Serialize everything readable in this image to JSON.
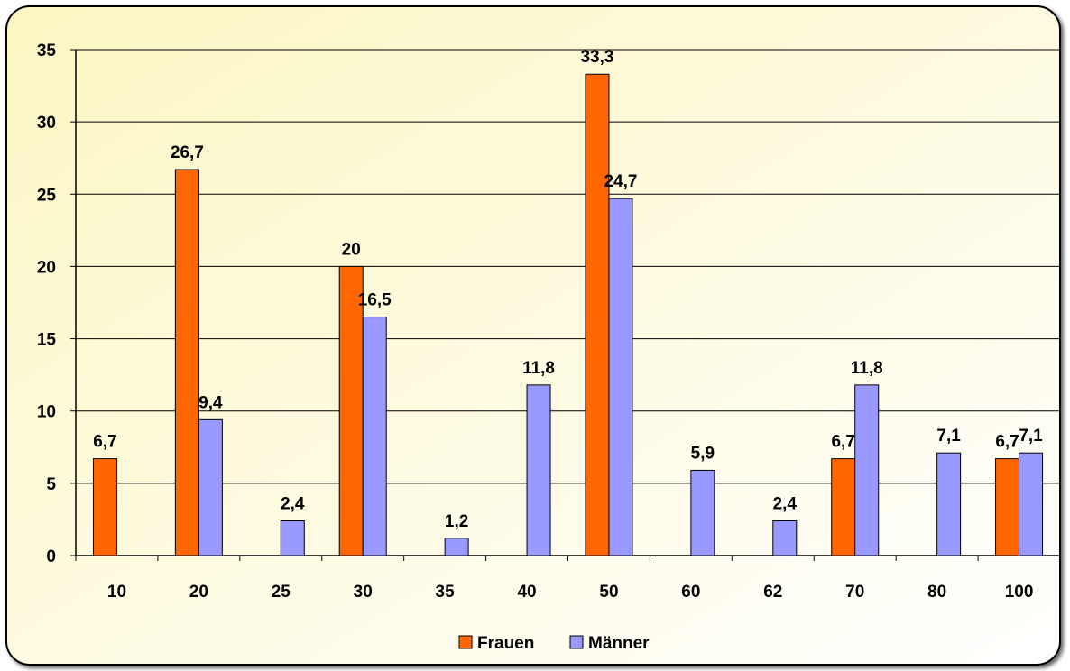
{
  "chart_data": {
    "type": "bar",
    "categories": [
      "10",
      "20",
      "25",
      "30",
      "35",
      "40",
      "50",
      "60",
      "62",
      "70",
      "80",
      "100"
    ],
    "series": [
      {
        "name": "Frauen",
        "color": "#ff6600",
        "values": [
          6.7,
          26.7,
          null,
          20,
          null,
          null,
          33.3,
          null,
          null,
          6.7,
          null,
          6.7
        ],
        "labels": [
          "6,7",
          "26,7",
          "",
          "20",
          "",
          "",
          "33,3",
          "",
          "",
          "6,7",
          "",
          "6,7"
        ]
      },
      {
        "name": "Männer",
        "color": "#9999ff",
        "values": [
          null,
          9.4,
          2.4,
          16.5,
          1.2,
          11.8,
          24.7,
          5.9,
          2.4,
          11.8,
          7.1,
          7.1
        ],
        "labels": [
          "",
          "9,4",
          "2,4",
          "16,5",
          "1,2",
          "11,8",
          "24,7",
          "5,9",
          "2,4",
          "11,8",
          "7,1",
          "7,1"
        ]
      }
    ],
    "title": "",
    "xlabel": "",
    "ylabel": "",
    "ylim": [
      0,
      35
    ],
    "yticks": [
      "0",
      "5",
      "10",
      "15",
      "20",
      "25",
      "30",
      "35"
    ],
    "grid": true,
    "legend_position": "bottom",
    "background_colors": {
      "gradient_top": "#fbf6c2",
      "gradient_bottom": "#ffffff",
      "frame": "#000000",
      "gridline": "#000000"
    }
  }
}
